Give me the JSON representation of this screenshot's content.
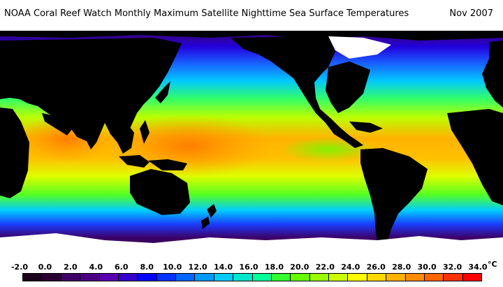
{
  "header": {
    "title": "NOAA Coral Reef Watch Monthly Maximum Satellite Nighttime Sea Surface Temperatures",
    "date": "Nov 2007"
  },
  "legend": {
    "unit": "°C",
    "ticks": [
      "-2.0",
      "0.0",
      "2.0",
      "4.0",
      "6.0",
      "8.0",
      "10.0",
      "12.0",
      "14.0",
      "16.0",
      "18.0",
      "20.0",
      "22.0",
      "24.0",
      "26.0",
      "28.0",
      "30.0",
      "32.0",
      "34.0"
    ],
    "swatches": [
      "#1a001a",
      "#2a0033",
      "#3d0066",
      "#4b0082",
      "#5a00b0",
      "#3300cc",
      "#0000ff",
      "#0033ff",
      "#0066ff",
      "#0099ff",
      "#00ccff",
      "#00e6cc",
      "#00ff99",
      "#33ff33",
      "#66ff00",
      "#99ff00",
      "#ccff00",
      "#ffff00",
      "#ffd700",
      "#ffb300",
      "#ff8c00",
      "#ff6600",
      "#ff3300",
      "#ff0000"
    ]
  },
  "map": {
    "land_color": "#000000",
    "ice_color": "#ffffff",
    "ocean_gradient": [
      "#3d0066",
      "#1a3cff",
      "#00c8ff",
      "#33ff33",
      "#ccff00",
      "#ffb300",
      "#ff8c00"
    ]
  }
}
